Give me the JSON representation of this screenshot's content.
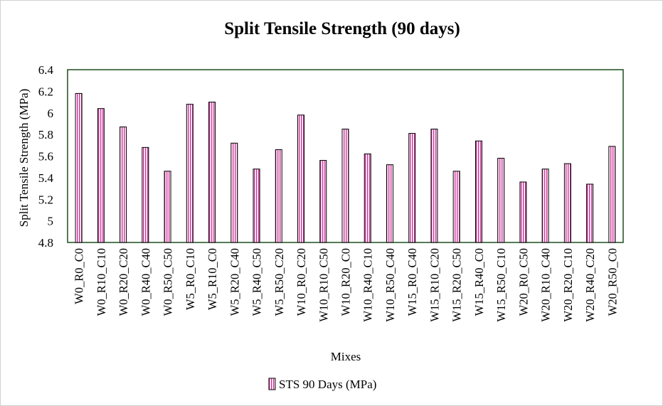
{
  "chart_data": {
    "type": "bar",
    "title": "Split Tensile Strength (90 days)",
    "xlabel": "Mixes",
    "ylabel": "Split Tensile Strength  (MPa)",
    "ylim": [
      4.8,
      6.4
    ],
    "yticks": [
      "4.8",
      "5",
      "5.2",
      "5.4",
      "5.6",
      "5.8",
      "6",
      "6.2",
      "6.4"
    ],
    "grid": false,
    "legend_position": "bottom",
    "categories": [
      "W0_R0_C0",
      "W0_R10_C10",
      "W0_R20_C20",
      "W0_R40_C40",
      "W0_R50_C50",
      "W5_R0_C10",
      "W5_R10_C0",
      "W5_R20_C40",
      "W5_R40_C50",
      "W5_R50_C20",
      "W10_R0_C20",
      "W10_R10_C50",
      "W10_R20_C0",
      "W10_R40_C10",
      "W10_R50_C40",
      "W15_R0_C40",
      "W15_R10_C20",
      "W15_R20_C50",
      "W15_R40_C0",
      "W15_R50_C10",
      "W20_R0_C50",
      "W20_R10_C40",
      "W20_R20_C10",
      "W20_R40_C20",
      "W20_R50_C0"
    ],
    "series": [
      {
        "name": "STS 90 Days (MPa)",
        "values": [
          6.18,
          6.04,
          5.87,
          5.68,
          5.46,
          6.08,
          6.1,
          5.72,
          5.48,
          5.66,
          5.98,
          5.56,
          5.85,
          5.62,
          5.52,
          5.81,
          5.85,
          5.46,
          5.74,
          5.58,
          5.36,
          5.48,
          5.53,
          5.34,
          5.69
        ]
      }
    ],
    "colors": {
      "bar_stripe": "#cc3399",
      "bar_fill": "#ffffff",
      "bar_outline": "#000000",
      "plot_border": "#1f4d1f"
    }
  }
}
